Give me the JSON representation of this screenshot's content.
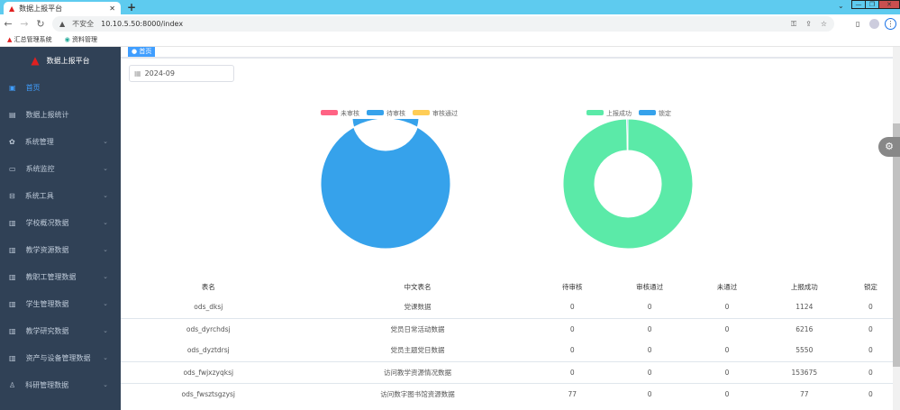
{
  "browser": {
    "tab_title": "数据上报平台",
    "url_warning": "不安全",
    "url": "10.10.5.50:8000/index",
    "bookmarks": [
      "汇总管理系统",
      "资料管理"
    ]
  },
  "sidebar": {
    "app_title": "数据上报平台",
    "items": [
      {
        "label": "首页",
        "icon": "dashboard-icon",
        "expandable": false,
        "active": true
      },
      {
        "label": "数据上报统计",
        "icon": "table-icon",
        "expandable": false
      },
      {
        "label": "系统管理",
        "icon": "gear-icon",
        "expandable": true
      },
      {
        "label": "系统监控",
        "icon": "monitor-icon",
        "expandable": true
      },
      {
        "label": "系统工具",
        "icon": "tool-icon",
        "expandable": true
      },
      {
        "label": "学校概况数据",
        "icon": "chart-icon",
        "expandable": true
      },
      {
        "label": "教学资源数据",
        "icon": "chart-icon",
        "expandable": true
      },
      {
        "label": "教职工管理数据",
        "icon": "chart-icon",
        "expandable": true
      },
      {
        "label": "学生管理数据",
        "icon": "chart-icon",
        "expandable": true
      },
      {
        "label": "教学研究数据",
        "icon": "chart-icon",
        "expandable": true
      },
      {
        "label": "资产与设备管理数据",
        "icon": "chart-icon",
        "expandable": true
      },
      {
        "label": "科研管理数据",
        "icon": "flask-icon",
        "expandable": true
      }
    ]
  },
  "main": {
    "tag": "首页",
    "date": "2024-09",
    "chart_data": [
      {
        "type": "pie",
        "donut": true,
        "legend": "top",
        "series": [
          {
            "name": "未审核",
            "value": 0,
            "color": "#ff6384"
          },
          {
            "name": "待审核",
            "value": 77,
            "color": "#36a2eb"
          },
          {
            "name": "审核通过",
            "value": 0,
            "color": "#ffcd56"
          }
        ]
      },
      {
        "type": "pie",
        "donut": true,
        "legend": "top",
        "series": [
          {
            "name": "上报成功",
            "value": 166642,
            "color": "#5beaa8"
          },
          {
            "name": "锁定",
            "value": 500,
            "color": "#36a2eb"
          }
        ]
      }
    ],
    "table": {
      "headers": [
        "表名",
        "中文表名",
        "待审核",
        "审核通过",
        "未通过",
        "上报成功",
        "锁定"
      ],
      "rows": [
        [
          "ods_dksj",
          "党课数据",
          "0",
          "0",
          "0",
          "1124",
          "0"
        ],
        [
          "ods_dyrchdsj",
          "党员日常活动数据",
          "0",
          "0",
          "0",
          "6216",
          "0"
        ],
        [
          "ods_dyztdrsj",
          "党员主题党日数据",
          "0",
          "0",
          "0",
          "5550",
          "0"
        ],
        [
          "ods_fwjxzyqksj",
          "访问教学资源情况数据",
          "0",
          "0",
          "0",
          "153675",
          "0"
        ],
        [
          "ods_fwsztsgzysj",
          "访问数字图书馆资源数据",
          "77",
          "0",
          "0",
          "77",
          "0"
        ]
      ]
    }
  }
}
